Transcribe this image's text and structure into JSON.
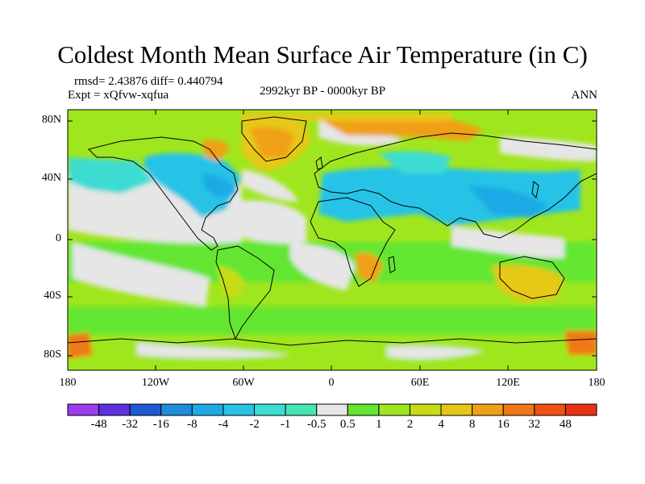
{
  "title": "Coldest Month Mean Surface Air Temperature (in C)",
  "stats": "rmsd= 2.43876 diff= 0.440794",
  "experiment": "Expt = xQfvw-xqfua",
  "period": "2992kyr BP - 0000kyr BP",
  "season": "ANN",
  "lat_labels": [
    "80N",
    "40N",
    "0",
    "40S",
    "80S"
  ],
  "lon_labels": [
    "180",
    "120W",
    "60W",
    "0",
    "60E",
    "120E",
    "180"
  ],
  "colorbar": {
    "labels": [
      "-48",
      "-32",
      "-16",
      "-8",
      "-4",
      "-2",
      "-1",
      "-0.5",
      "0.5",
      "1",
      "2",
      "4",
      "8",
      "16",
      "32",
      "48"
    ],
    "colors": [
      "#9b3cf0",
      "#5a32e0",
      "#1e5ad2",
      "#1e8cdc",
      "#1eaae6",
      "#28c3e6",
      "#3cdcd2",
      "#46e6b4",
      "#e6e6e6",
      "#64e632",
      "#a0e61e",
      "#c8dc14",
      "#e6c814",
      "#f0a014",
      "#f07814",
      "#f05014",
      "#e63214"
    ]
  },
  "colors": {
    "land_outline": "#000000",
    "neutral": "#e6e6e6"
  }
}
